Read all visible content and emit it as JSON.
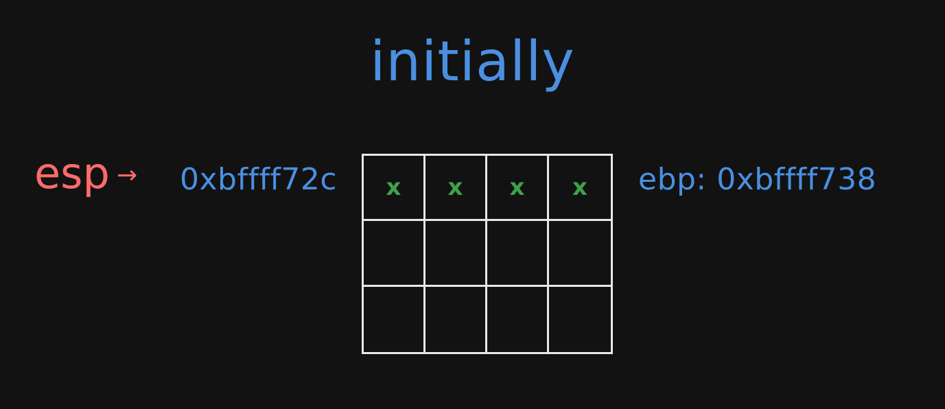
{
  "title": "initially",
  "esp": {
    "label": "esp",
    "arrow": "→",
    "address": "0xbffff72c"
  },
  "ebp": {
    "label": "ebp: 0xbffff738"
  },
  "grid": {
    "rows": [
      [
        "x",
        "x",
        "x",
        "x"
      ],
      [
        "",
        "",
        "",
        ""
      ],
      [
        "",
        "",
        "",
        ""
      ]
    ]
  },
  "colors": {
    "background": "#121212",
    "title": "#4a90e2",
    "esp": "#ff6b6b",
    "address": "#4a90e2",
    "cell_mark": "#3fa14a",
    "grid_line": "#e8e8e8"
  }
}
